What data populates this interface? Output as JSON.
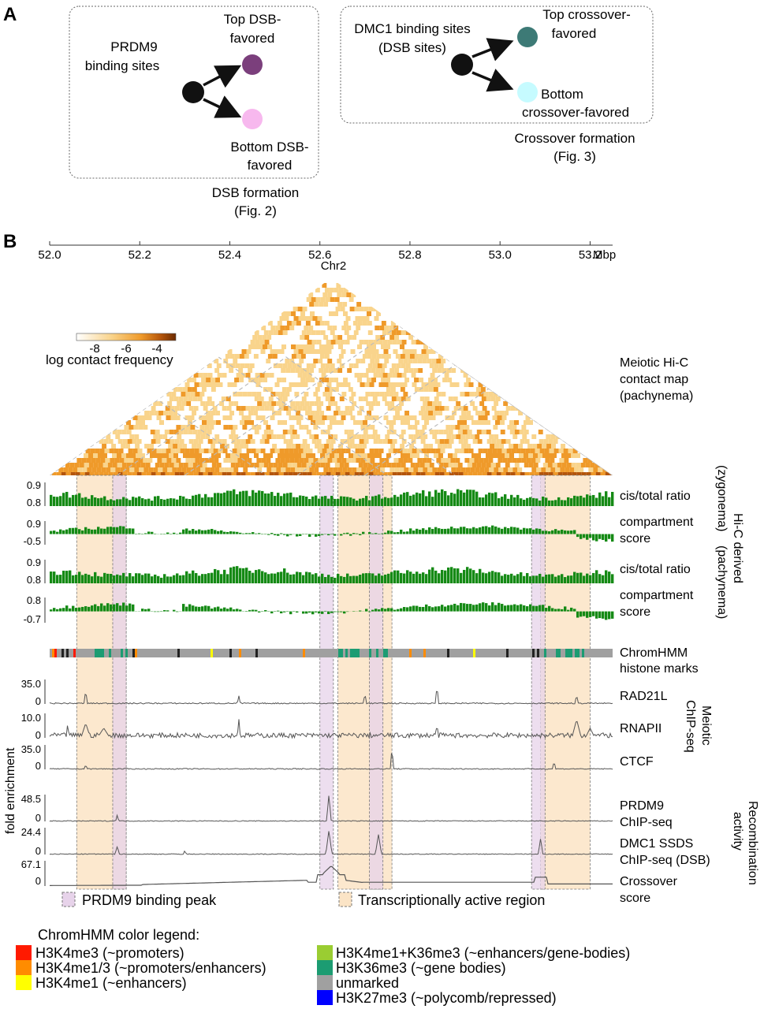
{
  "panel_a": {
    "label": "A",
    "left_box": {
      "source": [
        "PRDM9",
        "binding sites"
      ],
      "top": [
        "Top DSB-",
        "favored"
      ],
      "bottom": [
        "Bottom DSB-",
        "favored"
      ],
      "caption": [
        "DSB formation",
        "(Fig. 2)"
      ],
      "colors": {
        "source": "#111111",
        "top": "#7b3f7c",
        "bottom": "#f7b8ee"
      }
    },
    "right_box": {
      "source": [
        "DMC1 binding sites",
        "(DSB sites)"
      ],
      "top": [
        "Top crossover-",
        "favored"
      ],
      "bottom": [
        "Bottom",
        "crossover-favored"
      ],
      "caption": [
        "Crossover formation",
        "(Fig. 3)"
      ],
      "colors": {
        "source": "#111111",
        "top": "#3d7a76",
        "bottom": "#c6fbff"
      }
    }
  },
  "panel_b": {
    "label": "B",
    "axis": {
      "ticks": [
        "52.0",
        "52.2",
        "52.4",
        "52.6",
        "52.8",
        "53.0",
        "53.2"
      ],
      "unit": "Mbp",
      "chrom": "Chr2",
      "range": [
        52.0,
        53.25
      ]
    },
    "hic": {
      "title": [
        "Meiotic Hi-C",
        "contact map",
        "(pachynema)"
      ],
      "colorbar_ticks": [
        "-8",
        "-6",
        "-4"
      ],
      "colorbar_label": "log contact frequency",
      "colors": [
        "#ffffff",
        "#f9d48c",
        "#ef9a2a",
        "#b4550b",
        "#6a2a00"
      ]
    },
    "hic_tracks": [
      {
        "label": [
          "cis/total ratio"
        ],
        "top": "0.9",
        "bottom": "0.8",
        "type": "pos"
      },
      {
        "label": [
          "compartment",
          "score"
        ],
        "top": "0.9",
        "bottom": "-0.5",
        "type": "signed"
      },
      {
        "label": [
          "cis/total ratio"
        ],
        "top": "0.9",
        "bottom": "0.8",
        "type": "pos"
      },
      {
        "label": [
          "compartment",
          "score"
        ],
        "top": "0.8",
        "bottom": "-0.7",
        "type": "signed"
      }
    ],
    "hic_side_label": {
      "main": "Hi-C derived",
      "zygonema": "(zygonema)",
      "pachynema": "(pachynema)"
    },
    "chromhmm_label": [
      "ChromHMM",
      "histone marks"
    ],
    "chip_tracks": [
      {
        "label": "RAD21L",
        "top": "35.0",
        "bottom": "0"
      },
      {
        "label": "RNAPII",
        "top": "10.0",
        "bottom": "0"
      },
      {
        "label": "CTCF",
        "top": "35.0",
        "bottom": "0"
      }
    ],
    "chip_side_label": [
      "Meiotic",
      "ChIP-seq"
    ],
    "recomb_tracks": [
      {
        "label": [
          "PRDM9",
          "ChIP-seq"
        ],
        "top": "48.5",
        "bottom": "0"
      },
      {
        "label": [
          "DMC1 SSDS",
          "ChIP-seq (DSB)"
        ],
        "top": "24.4",
        "bottom": "0"
      },
      {
        "label": [
          "Crossover",
          "score"
        ],
        "top": "67.1",
        "bottom": "0"
      }
    ],
    "recomb_side_label": [
      "Recombination",
      "activity"
    ],
    "y_axis_label": "fold enrichment",
    "region_legend": {
      "prdm9": "PRDM9 binding peak",
      "active": "Transcriptionally active region"
    },
    "regions": {
      "active": [
        [
          52.06,
          52.17
        ],
        [
          52.64,
          52.76
        ],
        [
          53.09,
          53.2
        ]
      ],
      "prdm9": [
        [
          52.14,
          52.17
        ],
        [
          52.6,
          52.63
        ],
        [
          52.71,
          52.74
        ],
        [
          53.07,
          53.1
        ]
      ]
    }
  },
  "chromhmm_legend": {
    "title": "ChromHMM color legend:",
    "items": [
      {
        "label": "H3K4me3 (~promoters)",
        "color": "#ff1a00"
      },
      {
        "label": "H3K4me1/3 (~promoters/enhancers)",
        "color": "#ff8c00"
      },
      {
        "label": "H3K4me1 (~enhancers)",
        "color": "#ffff00"
      },
      {
        "label": "H3K4me1+K36me3 (~enhancers/gene-bodies)",
        "color": "#9acd32"
      },
      {
        "label": "H3K36me3 (~gene bodies)",
        "color": "#1c9c72"
      },
      {
        "label": "unmarked",
        "color": "#a0a0a0"
      },
      {
        "label": "H3K27me3 (~polycomb/repressed)",
        "color": "#0000ff"
      }
    ]
  },
  "colors": {
    "track_green": "#158a15",
    "chip_gray": "#555555",
    "region_active": "#fbe4c6",
    "region_prdm9": "#e7d3ea",
    "region_border": "#777777"
  }
}
